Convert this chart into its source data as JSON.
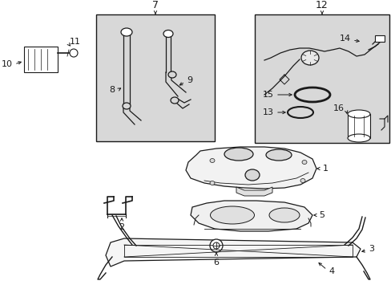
{
  "bg_color": "#ffffff",
  "lc": "#1a1a1a",
  "fig_width": 4.89,
  "fig_height": 3.6,
  "dpi": 100,
  "shade": "#d8d8d8",
  "shade2": "#e8e8e8"
}
